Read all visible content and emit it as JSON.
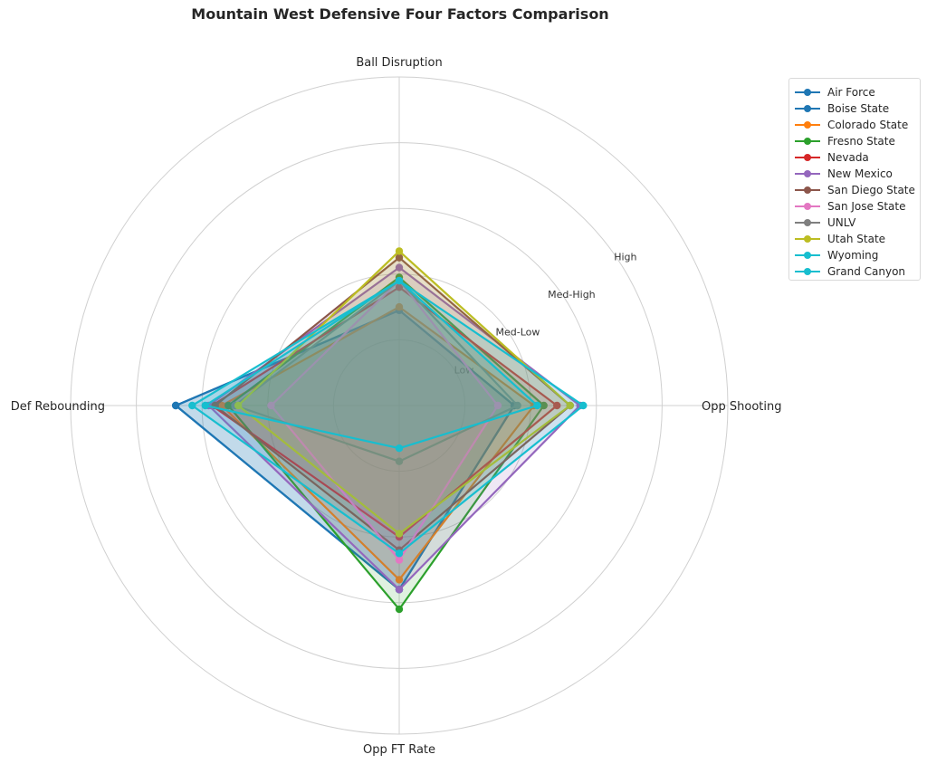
{
  "chart_data": {
    "type": "radar",
    "title": "Mountain West Defensive Four Factors Comparison",
    "axes": [
      "Opp Shooting",
      "Ball Disruption",
      "Def Rebounding",
      "Opp FT Rate"
    ],
    "ring_labels": [
      "Low",
      "Med-Low",
      "Med-High",
      "High"
    ],
    "rmax": 5,
    "series": [
      {
        "name": "Air Force",
        "color": "#1f77b4",
        "values": [
          1.75,
          1.45,
          3.4,
          2.8
        ]
      },
      {
        "name": "Boise State",
        "color": "#1f77b4",
        "values": [
          1.75,
          1.45,
          3.4,
          2.8
        ]
      },
      {
        "name": "Colorado State",
        "color": "#ff7f0e",
        "values": [
          2.05,
          1.5,
          2.7,
          2.65
        ]
      },
      {
        "name": "Fresno State",
        "color": "#2ca02c",
        "values": [
          2.2,
          1.95,
          2.6,
          3.1
        ]
      },
      {
        "name": "Nevada",
        "color": "#d62728",
        "values": [
          2.4,
          1.8,
          2.85,
          2.0
        ]
      },
      {
        "name": "New Mexico",
        "color": "#9467bd",
        "values": [
          2.75,
          2.1,
          2.9,
          2.8
        ]
      },
      {
        "name": "San Diego State",
        "color": "#8c564b",
        "values": [
          2.6,
          2.25,
          2.8,
          2.2
        ]
      },
      {
        "name": "San Jose State",
        "color": "#e377c2",
        "values": [
          1.5,
          1.9,
          1.95,
          2.35
        ]
      },
      {
        "name": "UNLV",
        "color": "#7f7f7f",
        "values": [
          1.8,
          1.9,
          2.5,
          0.85
        ]
      },
      {
        "name": "Utah State",
        "color": "#bcbd22",
        "values": [
          2.6,
          2.35,
          2.45,
          1.95
        ]
      },
      {
        "name": "Wyoming",
        "color": "#17becf",
        "values": [
          2.8,
          1.9,
          3.15,
          2.25
        ]
      },
      {
        "name": "Grand Canyon",
        "color": "#17becf",
        "values": [
          2.1,
          1.9,
          2.95,
          0.65
        ]
      }
    ]
  }
}
